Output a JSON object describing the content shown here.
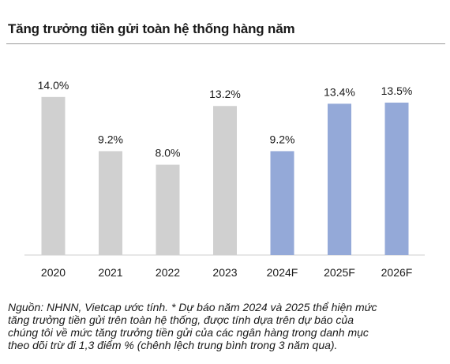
{
  "title": "Tăng trưởng tiền gửi toàn hệ thống hàng năm",
  "chart_data": {
    "type": "bar",
    "title": "Tăng trưởng tiền gửi toàn hệ thống hàng năm",
    "categories": [
      "2020",
      "2021",
      "2022",
      "2023",
      "2024F",
      "2025F",
      "2026F"
    ],
    "values": [
      14.0,
      9.2,
      8.0,
      13.2,
      9.2,
      13.4,
      13.5
    ],
    "value_labels": [
      "14.0%",
      "9.2%",
      "8.0%",
      "13.2%",
      "9.2%",
      "13.4%",
      "13.5%"
    ],
    "colors": [
      "#d0d0d0",
      "#d0d0d0",
      "#d0d0d0",
      "#d0d0d0",
      "#94a9d8",
      "#94a9d8",
      "#94a9d8"
    ],
    "ylim": [
      0,
      16
    ],
    "grid": false,
    "legend": "none"
  },
  "note_lines": [
    "Nguồn: NHNN, Vietcap ước tính. * Dự báo năm 2024 và 2025 thể hiện mức",
    "tăng trưởng tiền gửi trên toàn hệ thống, được tính dựa trên dự báo của",
    "chúng tôi về mức tăng trưởng tiền gửi của các ngân hàng trong danh mục",
    "theo dõi trừ đi 1,3 điểm % (chênh lệch trung bình trong 3 năm qua)."
  ]
}
